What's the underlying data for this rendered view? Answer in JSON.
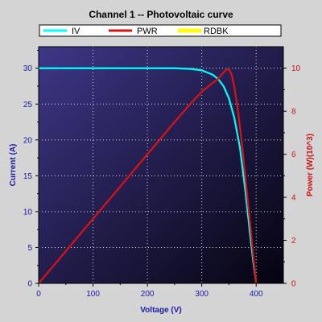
{
  "colors": {
    "page_background": "#d4d4d4",
    "plot_gradient_top_left": "#3e3788",
    "plot_gradient_bottom_right": "#05030f",
    "grid": "#d8d8d8",
    "iv": "#00ffff",
    "pwr": "#dd1111",
    "rdbk": "#ffff00",
    "left_axis_text": "#1a1aa8",
    "right_axis_text": "#cc1111"
  },
  "chart_data": {
    "type": "line",
    "title": "Channel 1 -- Photovoltaic curve",
    "xlabel": "Voltage (V)",
    "ylabel_left": "Current (A)",
    "ylabel_right": "Power  (W)(10^3)",
    "xlim": [
      0,
      450
    ],
    "ylim_left": [
      0,
      33
    ],
    "ylim_right": [
      0,
      11
    ],
    "x_ticks": [
      "0",
      "100",
      "200",
      "300",
      "400"
    ],
    "y_left_ticks": [
      "0",
      "5",
      "10",
      "15",
      "20",
      "25",
      "30"
    ],
    "y_right_ticks": [
      "0",
      "2",
      "4",
      "6",
      "8",
      "10"
    ],
    "grid": true,
    "legend_position": "top",
    "series": [
      {
        "name": "IV",
        "axis": "left",
        "color": "#00ffff",
        "x": [
          0,
          50,
          100,
          150,
          200,
          250,
          280,
          300,
          320,
          330,
          340,
          350,
          360,
          370,
          380,
          385,
          390,
          395,
          400
        ],
        "y": [
          30,
          30,
          30,
          30,
          30,
          30,
          29.9,
          29.7,
          29.1,
          28.5,
          27.5,
          25.8,
          23.0,
          19.0,
          13.0,
          9.5,
          6.0,
          2.8,
          0
        ]
      },
      {
        "name": "PWR",
        "axis": "right",
        "color": "#dd1111",
        "x": [
          0,
          50,
          100,
          150,
          200,
          250,
          280,
          300,
          320,
          330,
          340,
          345,
          350,
          355,
          360,
          365,
          370,
          375,
          380,
          385,
          390,
          395,
          400
        ],
        "y": [
          0,
          1.5,
          3.0,
          4.5,
          6.0,
          7.5,
          8.37,
          8.91,
          9.31,
          9.5,
          9.8,
          9.93,
          9.95,
          9.7,
          9.1,
          8.3,
          7.3,
          6.2,
          4.94,
          3.7,
          2.5,
          1.2,
          0
        ]
      },
      {
        "name": "RDBK",
        "axis": "left",
        "color": "#ffff00",
        "x": [],
        "y": []
      }
    ]
  }
}
